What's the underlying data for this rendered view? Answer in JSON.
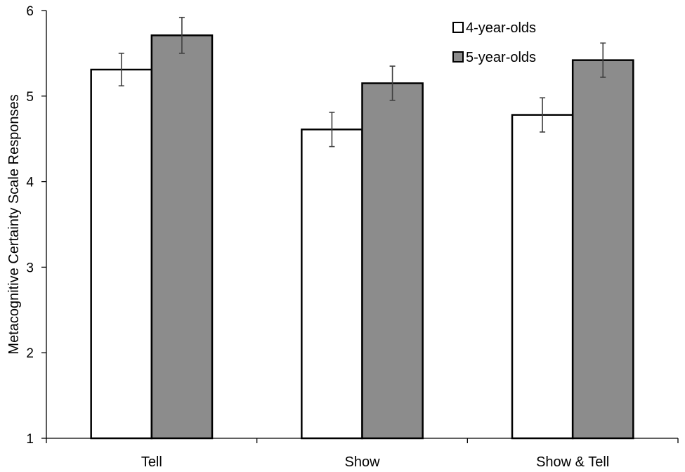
{
  "chart_data": {
    "type": "bar",
    "title": "",
    "xlabel": "",
    "ylabel": "Metacognitive Certainty Scale Responses",
    "ylim": [
      1,
      6
    ],
    "yticks": [
      1,
      2,
      3,
      4,
      5,
      6
    ],
    "ytick_labels": [
      "1",
      "2",
      "3",
      "4",
      "5",
      "6"
    ],
    "categories": [
      "Tell",
      "Show",
      "Show & Tell"
    ],
    "series": [
      {
        "name": "4-year-olds",
        "color": "#ffffff",
        "values": [
          5.31,
          4.61,
          4.78
        ],
        "errors": [
          0.19,
          0.2,
          0.2
        ]
      },
      {
        "name": "5-year-olds",
        "color": "#8c8c8c",
        "values": [
          5.71,
          5.15,
          5.42
        ],
        "errors": [
          0.21,
          0.2,
          0.2
        ]
      }
    ],
    "grid": false,
    "legend": "top-right"
  }
}
